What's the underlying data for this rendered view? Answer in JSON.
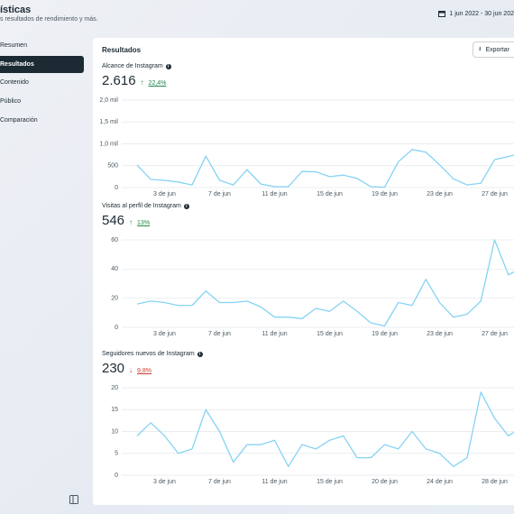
{
  "header": {
    "title": "ísticas",
    "subtitle": "s resultados de rendimiento y más.",
    "date_range": "1 jun 2022 - 30 jun 202"
  },
  "sidebar": {
    "items": [
      "Resumen",
      "Resultados",
      "Contenido",
      "Público",
      "Comparación"
    ],
    "selected": 1
  },
  "panel": {
    "title": "Resultados",
    "export": "Exportar"
  },
  "charts": [
    {
      "type": "line",
      "title": "Alcance de Instagram",
      "total": "2.616",
      "change": "22,4%",
      "trend": "up",
      "color": "#86d3f4",
      "categories": [
        null,
        null,
        "3 de jun",
        null,
        null,
        null,
        "7 de jun",
        null,
        null,
        null,
        "11 de jun",
        null,
        null,
        null,
        "15 de jun",
        null,
        null,
        null,
        "19 de jun",
        null,
        null,
        null,
        "23 de jun",
        null,
        null,
        null,
        "27 de jun",
        null,
        null
      ],
      "values": [
        515,
        185,
        165,
        125,
        60,
        720,
        165,
        60,
        410,
        80,
        20,
        20,
        370,
        360,
        250,
        285,
        210,
        20,
        10,
        590,
        870,
        810,
        520,
        200,
        60,
        100,
        640,
        710,
        800
      ],
      "ylim": [
        0,
        2000
      ],
      "yticks": [
        0,
        500,
        {
          "value": 1000,
          "label": "1,0 mil"
        },
        {
          "value": 1500,
          "label": "1,5 mil"
        },
        {
          "value": 2000,
          "label": "2,0 mil"
        }
      ]
    },
    {
      "type": "line",
      "title": "Visitas al perfil de Instagram",
      "total": "546",
      "change": "13%",
      "trend": "up",
      "color": "#86d3f4",
      "categories": [
        null,
        null,
        "3 de jun",
        null,
        null,
        null,
        "7 de jun",
        null,
        null,
        null,
        "11 de jun",
        null,
        null,
        null,
        "15 de jun",
        null,
        null,
        null,
        "19 de jun",
        null,
        null,
        null,
        "23 de jun",
        null,
        null,
        null,
        "27 de jun",
        null,
        null
      ],
      "values": [
        16,
        18,
        17,
        15,
        15,
        25,
        17,
        17,
        18,
        14,
        7,
        7,
        6,
        13,
        11,
        18,
        11,
        3,
        1,
        17,
        15,
        33,
        17,
        7,
        9,
        18,
        60,
        36,
        41
      ],
      "ylim": [
        0,
        60
      ],
      "yticks": [
        0,
        20,
        40,
        60
      ]
    },
    {
      "type": "line",
      "title": "Seguidores nuevos de Instagram",
      "total": "230",
      "change": "9,8%",
      "trend": "down",
      "color": "#86d3f4",
      "categories": [
        null,
        null,
        "3 de jun",
        null,
        null,
        null,
        "7 de jun",
        null,
        null,
        null,
        "11 de jun",
        null,
        null,
        null,
        "15 de jun",
        null,
        null,
        null,
        "20 de jun",
        null,
        null,
        null,
        "24 de jun",
        null,
        null,
        null,
        "28 de jun",
        null,
        null
      ],
      "values": [
        9,
        12,
        9,
        5,
        6,
        15,
        10,
        3,
        7,
        7,
        8,
        2,
        7,
        6,
        8,
        9,
        4,
        4,
        7,
        6,
        10,
        6,
        5,
        2,
        4,
        19,
        13,
        9,
        11
      ],
      "ylim": [
        0,
        20
      ],
      "yticks": [
        0,
        5,
        10,
        15,
        20
      ]
    }
  ]
}
